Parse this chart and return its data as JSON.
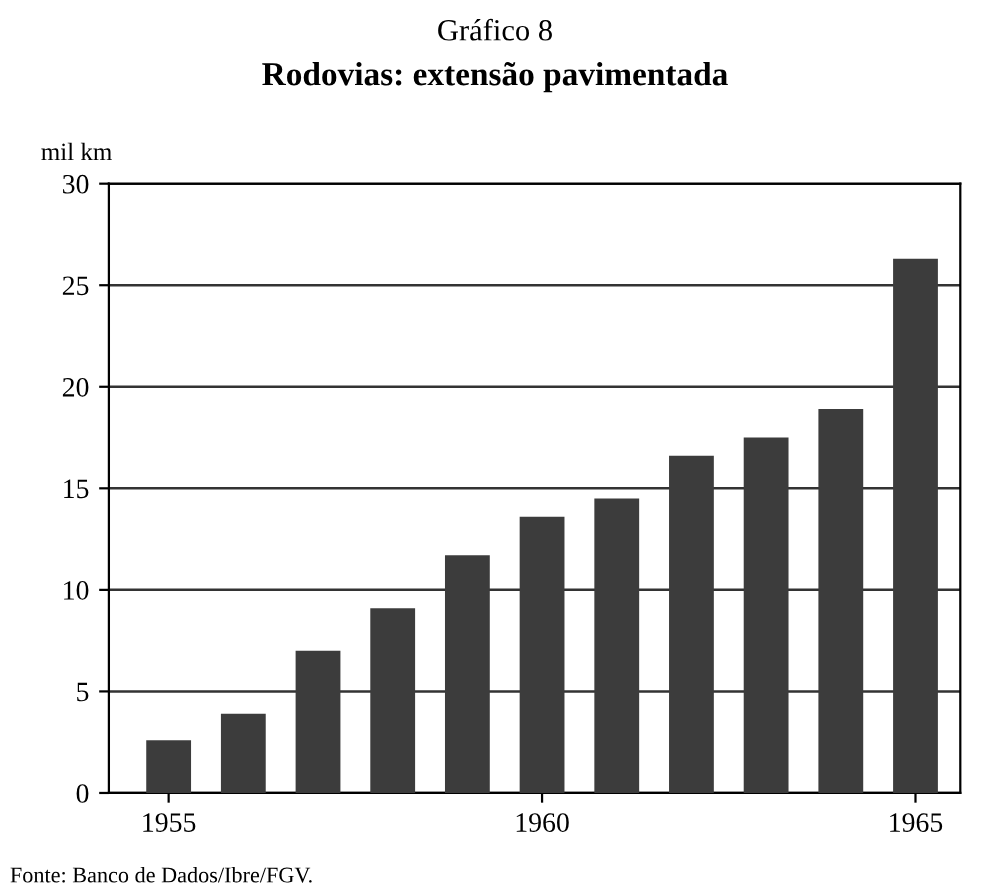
{
  "chart_data": {
    "type": "bar",
    "title": "Gráfico 8",
    "subtitle": "Rodovias: extensão pavimentada",
    "ylabel": "mil km",
    "categories": [
      "1955",
      null,
      null,
      null,
      null,
      "1960",
      null,
      null,
      null,
      null,
      "1965"
    ],
    "values": [
      2.6,
      3.9,
      7.0,
      9.1,
      11.7,
      13.6,
      14.5,
      16.6,
      17.5,
      18.9,
      26.3
    ],
    "color": "#3c3c3c",
    "ylim": [
      0,
      30
    ],
    "yticks": [
      0,
      5,
      10,
      15,
      20,
      25,
      30
    ],
    "grid": "y",
    "annotations": [
      "Fonte: Banco de Dados/Ibre/FGV."
    ]
  }
}
